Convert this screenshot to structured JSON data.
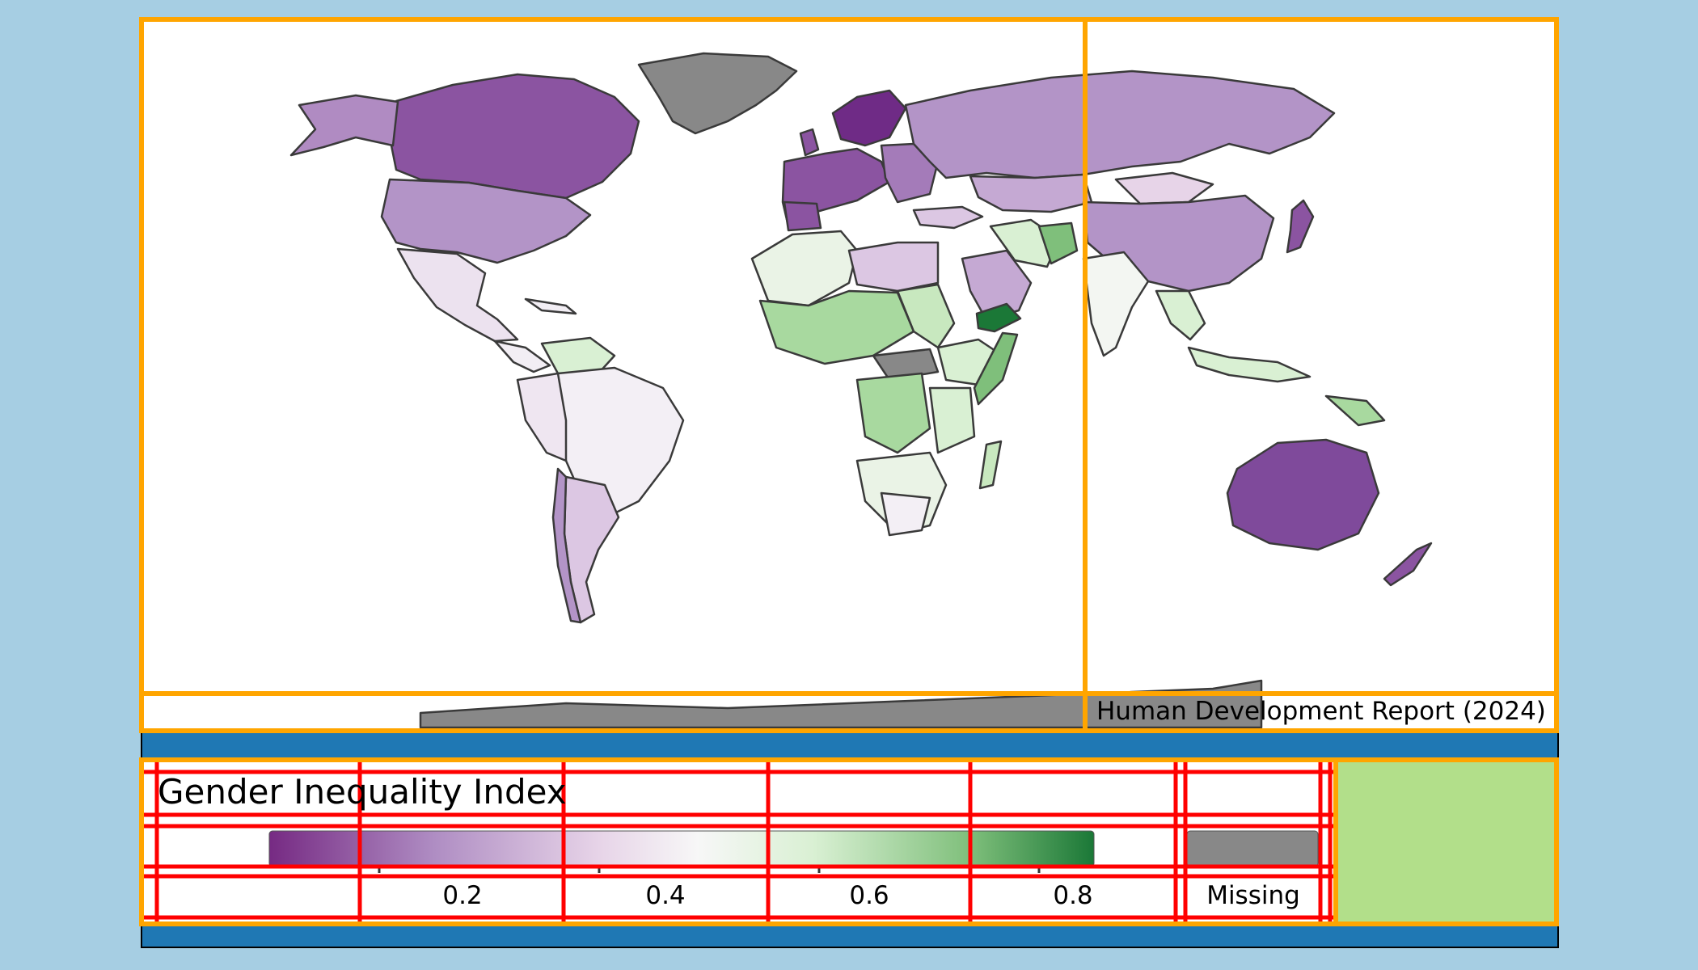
{
  "legend": {
    "title": "Gender Inequality Index",
    "ticks": [
      {
        "value": 0.2,
        "label": "0.2"
      },
      {
        "value": 0.4,
        "label": "0.4"
      },
      {
        "value": 0.6,
        "label": "0.6"
      },
      {
        "value": 0.8,
        "label": "0.8"
      }
    ],
    "range": [
      0.1,
      0.85
    ],
    "missing_label": "Missing",
    "palette": [
      "#762a83",
      "#af8dc3",
      "#e7d4e8",
      "#f7f7f7",
      "#d9f0d3",
      "#7fbf7b",
      "#1b7837"
    ],
    "missing_color": "#888888"
  },
  "source": "Human Development Report (2024)",
  "colors": {
    "ocean_background": "#a6cee3",
    "map_panel": "#ffffff",
    "frame_orange": "#ffa500",
    "grid_red": "#ff0000",
    "band_blue": "#1f78b4",
    "spacer_green": "#b2df8a",
    "country_border": "#3a3a3a"
  }
}
